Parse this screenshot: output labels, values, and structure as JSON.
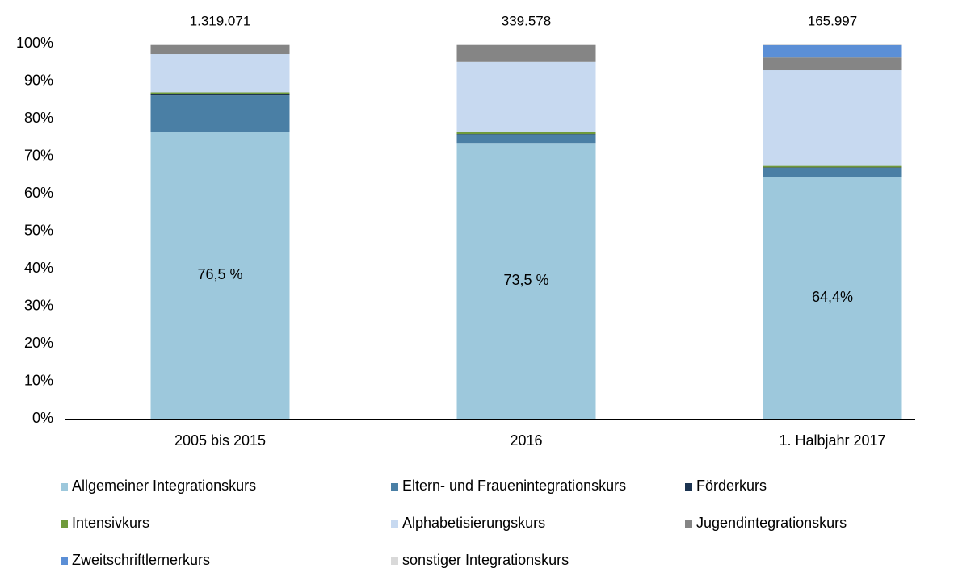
{
  "chart_data": {
    "type": "stacked_bar",
    "categories": [
      "2005 bis 2015",
      "2016",
      "1. Halbjahr 2017"
    ],
    "series": [
      {
        "name": "Allgemeiner Integrationskurs",
        "color": "#9dc8dc",
        "values": [
          76.5,
          73.5,
          64.4
        ],
        "value_labels": [
          "76,5 %",
          "73,5 %",
          "64,4%"
        ]
      },
      {
        "name": "Eltern- und Frauenintegrationskurs",
        "color": "#4a7fa5",
        "values": [
          9.7,
          2.3,
          2.5
        ]
      },
      {
        "name": "Förderkurs",
        "color": "#1b3350",
        "values": [
          0.4,
          0.1,
          0.1
        ]
      },
      {
        "name": "Intensivkurs",
        "color": "#6f9a3b",
        "values": [
          0.4,
          0.5,
          0.4
        ]
      },
      {
        "name": "Alphabetisierungskurs",
        "color": "#c7d9f0",
        "values": [
          10.2,
          18.7,
          25.5
        ]
      },
      {
        "name": "Jugendintegrationskurs",
        "color": "#858585",
        "values": [
          2.4,
          4.5,
          3.4
        ]
      },
      {
        "name": "Zweitschriftlernerkurs",
        "color": "#5b8fd6",
        "values": [
          0,
          0,
          3.3
        ]
      },
      {
        "name": "sonstiger Integrationskurs",
        "color": "#d9d9d9",
        "values": [
          0.4,
          0.4,
          0.4
        ]
      }
    ],
    "totals": {
      "values": [
        1319071,
        339578,
        165997
      ],
      "value_labels": [
        "1.319.071",
        "339.578",
        "165.997"
      ]
    },
    "ylim": [
      0,
      100
    ],
    "yticks": [
      {
        "value": 0,
        "label": "0%"
      },
      {
        "value": 10,
        "label": "10%"
      },
      {
        "value": 20,
        "label": "20%"
      },
      {
        "value": 30,
        "label": "30%"
      },
      {
        "value": 40,
        "label": "40%"
      },
      {
        "value": 50,
        "label": "50%"
      },
      {
        "value": 60,
        "label": "60%"
      },
      {
        "value": 70,
        "label": "70%"
      },
      {
        "value": 80,
        "label": "80%"
      },
      {
        "value": 90,
        "label": "90%"
      },
      {
        "value": 100,
        "label": "100%"
      }
    ],
    "grid": false
  }
}
